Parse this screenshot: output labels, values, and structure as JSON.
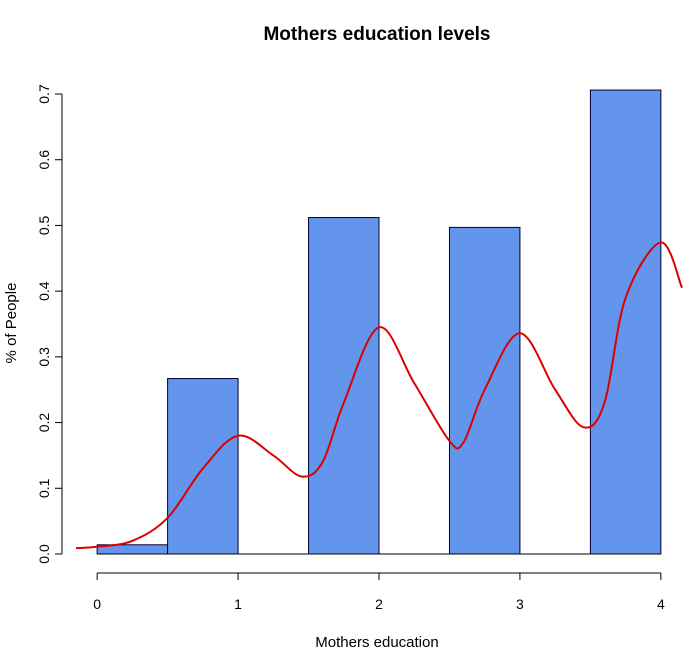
{
  "chart_data": {
    "type": "bar",
    "title": "Mothers education levels",
    "xlabel": "Mothers education",
    "ylabel": "% of People",
    "bar_color": "#6495ED",
    "bar_border_color": "#000033",
    "curve_color": "#DD0000",
    "xlim": [
      -0.15,
      4.15
    ],
    "ylim": [
      0,
      0.7
    ],
    "x_ticks": [
      0,
      1,
      2,
      3,
      4
    ],
    "x_tick_labels": [
      "0",
      "1",
      "2",
      "3",
      "4"
    ],
    "y_ticks": [
      0,
      0.1,
      0.2,
      0.3,
      0.4,
      0.5,
      0.6,
      0.7
    ],
    "y_tick_labels": [
      "0.0",
      "0.1",
      "0.2",
      "0.3",
      "0.4",
      "0.5",
      "0.6",
      "0.7"
    ],
    "bars": [
      {
        "x0": 0.0,
        "x1": 0.5,
        "value": 0.014
      },
      {
        "x0": 0.5,
        "x1": 1.0,
        "value": 0.267
      },
      {
        "x0": 1.5,
        "x1": 2.0,
        "value": 0.512
      },
      {
        "x0": 2.5,
        "x1": 3.0,
        "value": 0.497
      },
      {
        "x0": 3.5,
        "x1": 4.0,
        "value": 0.706
      }
    ],
    "series": [
      {
        "type": "line",
        "x": [
          -0.15,
          0.0,
          0.25,
          0.5,
          0.75,
          1.0,
          1.25,
          1.45,
          1.6,
          1.75,
          2.0,
          2.25,
          2.5,
          2.6,
          2.75,
          3.0,
          3.25,
          3.45,
          3.6,
          3.75,
          4.0,
          4.15
        ],
        "y": [
          0.009,
          0.011,
          0.02,
          0.055,
          0.13,
          0.18,
          0.15,
          0.118,
          0.14,
          0.23,
          0.345,
          0.26,
          0.172,
          0.17,
          0.25,
          0.336,
          0.25,
          0.193,
          0.23,
          0.39,
          0.474,
          0.405
        ]
      }
    ]
  }
}
